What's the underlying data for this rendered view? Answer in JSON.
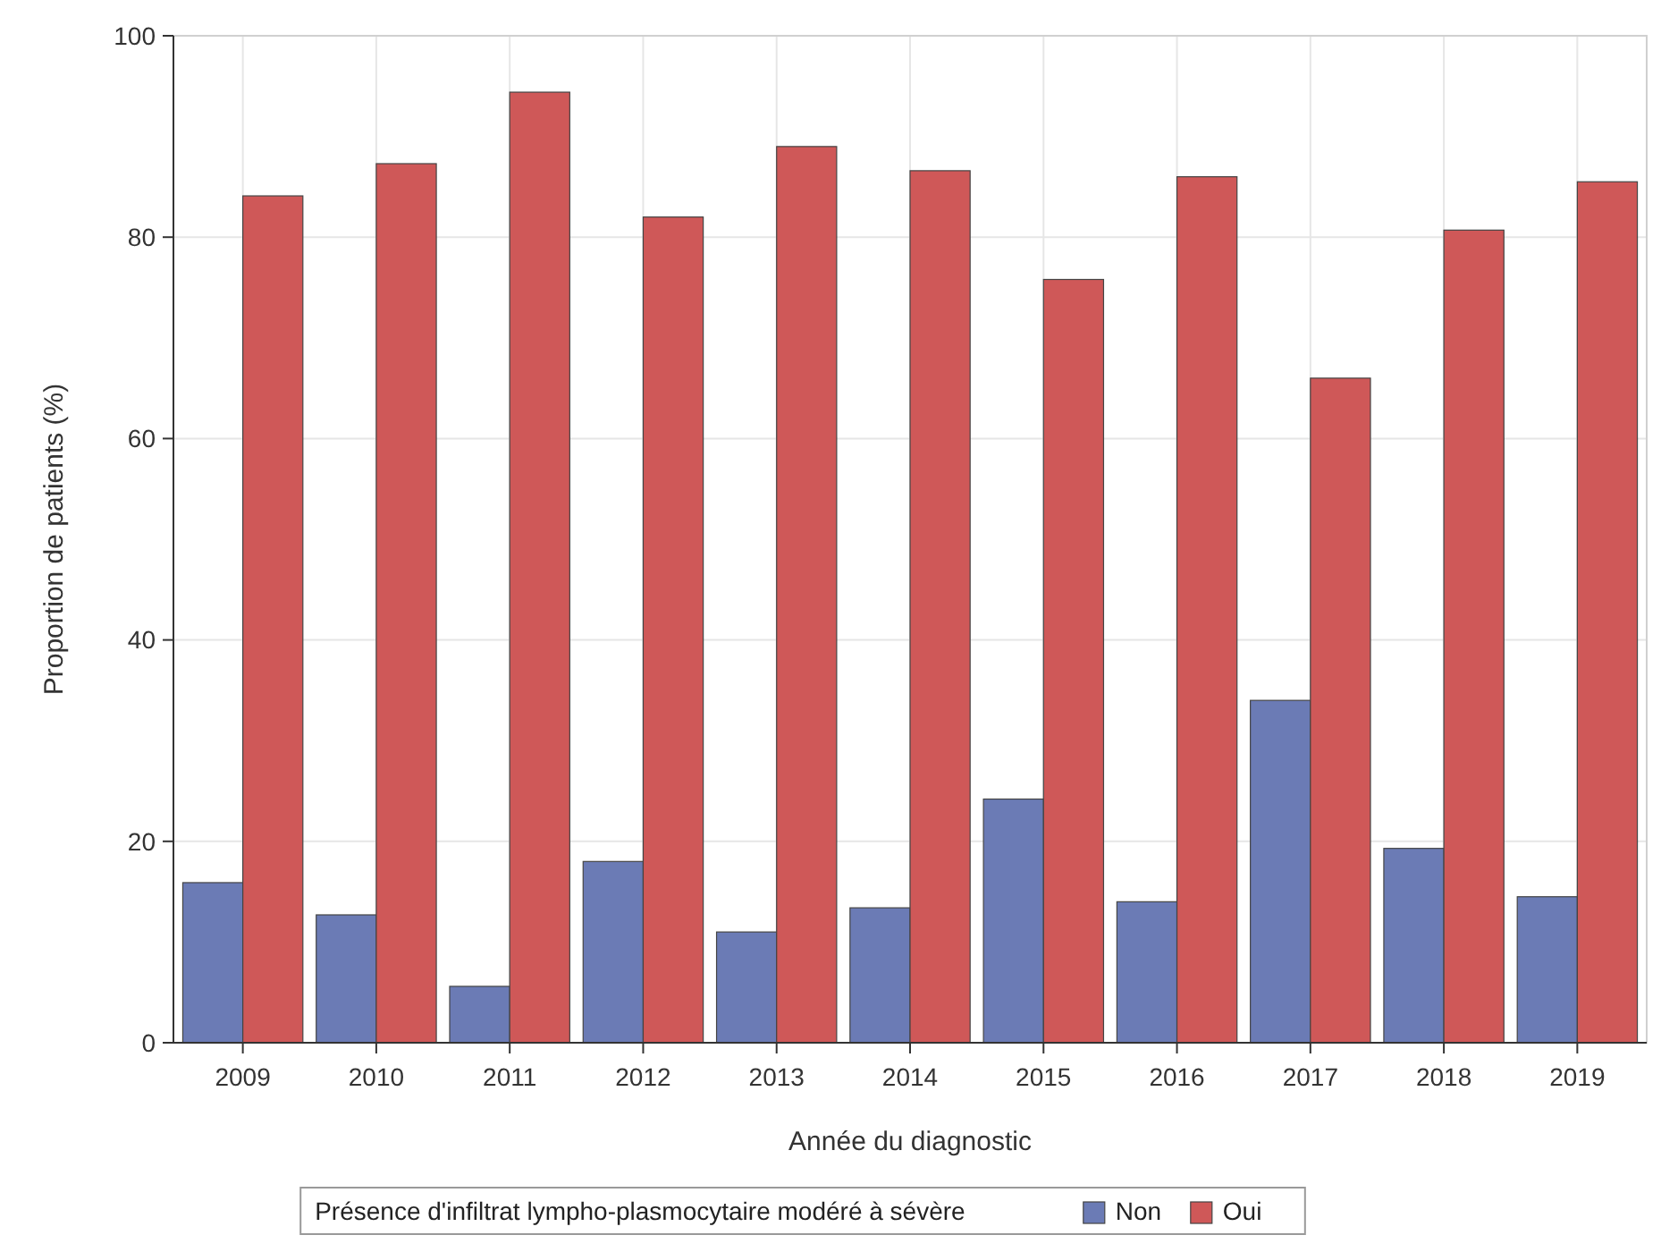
{
  "chart_data": {
    "type": "bar",
    "xlabel": "Année du diagnostic",
    "ylabel": "Proportion de patients (%)",
    "legend_title": "Présence d'infiltrat lympho-plasmocytaire modéré à sévère",
    "categories": [
      "2009",
      "2010",
      "2011",
      "2012",
      "2013",
      "2014",
      "2015",
      "2016",
      "2017",
      "2018",
      "2019"
    ],
    "series": [
      {
        "name": "Non",
        "color": "#6b7bb5",
        "values": [
          15.9,
          12.7,
          5.6,
          18.0,
          11.0,
          13.4,
          24.2,
          14.0,
          34.0,
          19.3,
          14.5
        ]
      },
      {
        "name": "Oui",
        "color": "#cf5858",
        "values": [
          84.1,
          87.3,
          94.4,
          82.0,
          89.0,
          86.6,
          75.8,
          86.0,
          66.0,
          80.7,
          85.5
        ]
      }
    ],
    "ylim": [
      0,
      100
    ],
    "yticks": [
      0,
      20,
      40,
      60,
      80,
      100
    ],
    "grid": true,
    "legend": "bottom"
  }
}
